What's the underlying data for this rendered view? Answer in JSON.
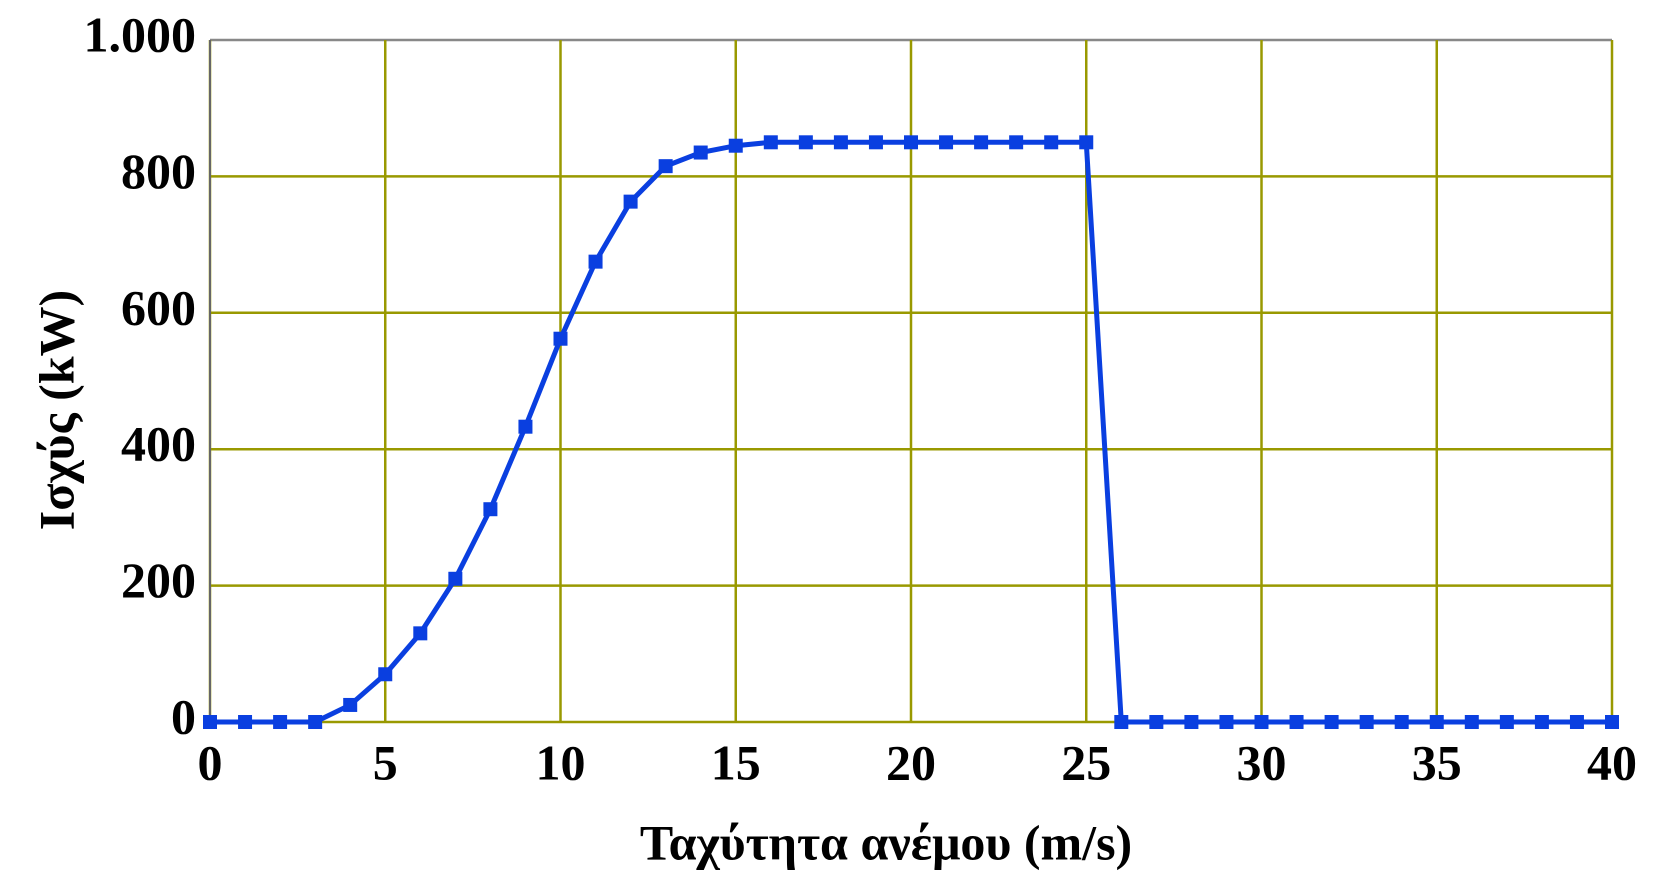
{
  "chart_data": {
    "type": "line",
    "x_label": "Ταχύτητα ανέμου (m/s)",
    "y_label": "Ισχύς (kW)",
    "x": [
      0,
      1,
      2,
      3,
      4,
      5,
      6,
      7,
      8,
      9,
      10,
      11,
      12,
      13,
      14,
      15,
      16,
      17,
      18,
      19,
      20,
      21,
      22,
      23,
      24,
      25,
      26,
      27,
      28,
      29,
      30,
      31,
      32,
      33,
      34,
      35,
      36,
      37,
      38,
      39,
      40
    ],
    "series": [
      {
        "color": "#0a3fe0",
        "values": [
          0,
          0,
          0,
          0,
          25,
          70,
          130,
          210,
          312,
          433,
          562,
          675,
          763,
          815,
          835,
          845,
          850,
          850,
          850,
          850,
          850,
          850,
          850,
          850,
          850,
          850,
          0,
          0,
          0,
          0,
          0,
          0,
          0,
          0,
          0,
          0,
          0,
          0,
          0,
          0,
          0
        ]
      }
    ],
    "xlim": [
      0,
      40
    ],
    "xticks": [
      0,
      5,
      10,
      15,
      20,
      25,
      30,
      35,
      40
    ],
    "ylim": [
      0,
      1000
    ],
    "yticks": [
      0,
      200,
      400,
      600,
      800,
      {
        "value": 1000,
        "label": "1.000"
      }
    ],
    "grid": true,
    "grid_color": "#999900"
  }
}
